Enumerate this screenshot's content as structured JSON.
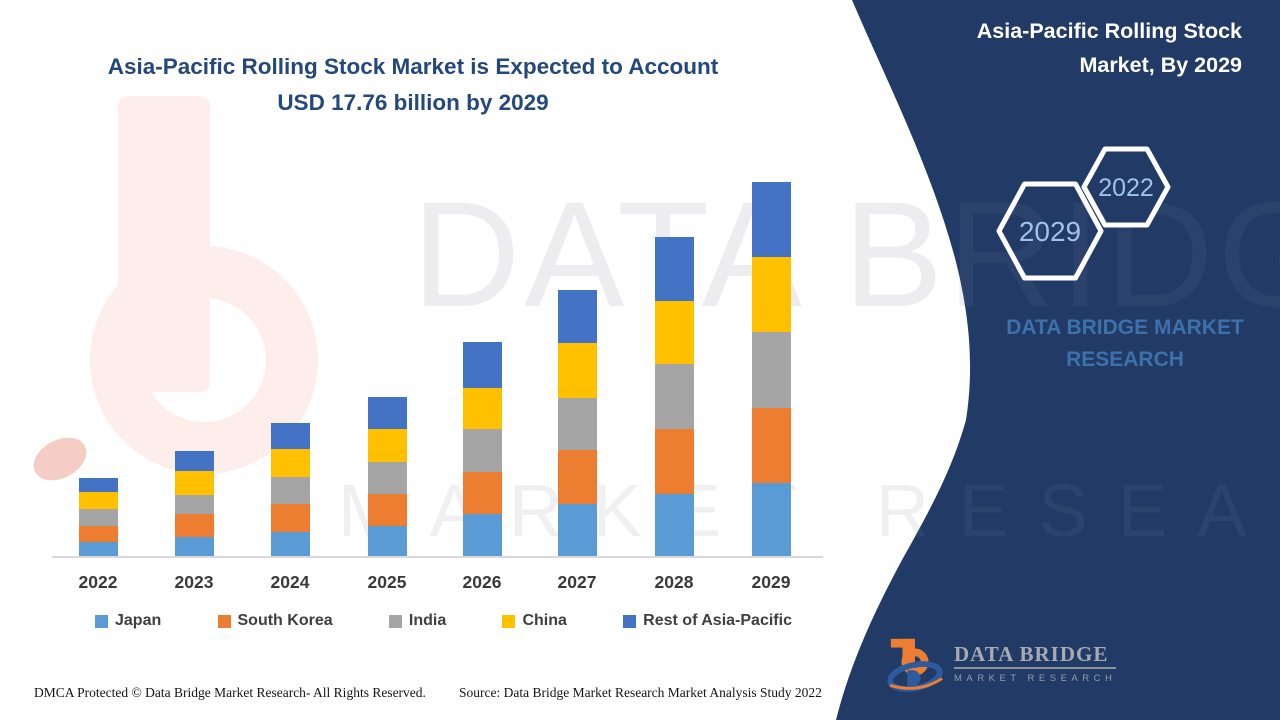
{
  "page": {
    "chart_title_line1": "Asia-Pacific Rolling Stock Market is Expected to Account",
    "chart_title_line2": "USD 17.76 billion by 2029"
  },
  "watermark": {
    "brand": "DATA BRIDGE",
    "tagline": "MARKET RESEARCH"
  },
  "panel": {
    "bg_color": "#213a66",
    "title_line1": "Asia-Pacific Rolling Stock",
    "title_line2": "Market, By 2029",
    "hexagons": [
      {
        "label": "2029"
      },
      {
        "label": "2022"
      }
    ],
    "brand_line1": "DATA BRIDGE MARKET",
    "brand_line2": "RESEARCH",
    "logo": {
      "name": "DATA BRIDGE",
      "subtitle": "MARKET RESEARCH"
    }
  },
  "footer": {
    "left": "DMCA Protected © Data Bridge Market Research- All Rights Reserved.",
    "right": "Source: Data Bridge Market Research Market Analysis Study 2022"
  },
  "chart_data": {
    "type": "bar",
    "stacked": true,
    "title": "Asia-Pacific Rolling Stock Market is Expected to Account USD 17.76 billion by 2029",
    "unit": "USD billion (estimated from bar heights; 2029 total = 17.76 per title)",
    "categories": [
      "2022",
      "2023",
      "2024",
      "2025",
      "2026",
      "2027",
      "2028",
      "2029"
    ],
    "series": [
      {
        "name": "Japan",
        "color": "#5b9bd5",
        "values": [
          0.71,
          0.95,
          1.18,
          1.47,
          2.04,
          2.51,
          2.98,
          3.51
        ]
      },
      {
        "name": "South Korea",
        "color": "#ed7d31",
        "values": [
          0.76,
          1.09,
          1.33,
          1.52,
          1.99,
          2.56,
          3.08,
          3.55
        ]
      },
      {
        "name": "India",
        "color": "#a5a5a5",
        "values": [
          0.81,
          0.9,
          1.28,
          1.52,
          2.04,
          2.46,
          3.08,
          3.6
        ]
      },
      {
        "name": "China",
        "color": "#ffc000",
        "values": [
          0.81,
          1.14,
          1.33,
          1.56,
          1.94,
          2.6,
          2.98,
          3.55
        ]
      },
      {
        "name": "Rest of Asia-Pacific",
        "color": "#4472c4",
        "values": [
          0.66,
          0.95,
          1.23,
          1.52,
          2.18,
          2.51,
          3.03,
          3.55
        ]
      }
    ],
    "totals": [
      3.75,
      5.03,
      6.35,
      7.59,
      10.19,
      12.64,
      15.15,
      17.76
    ],
    "xlabel": "",
    "ylabel": "",
    "y_axis_shown": false,
    "gridlines": false,
    "legend_position": "bottom"
  }
}
